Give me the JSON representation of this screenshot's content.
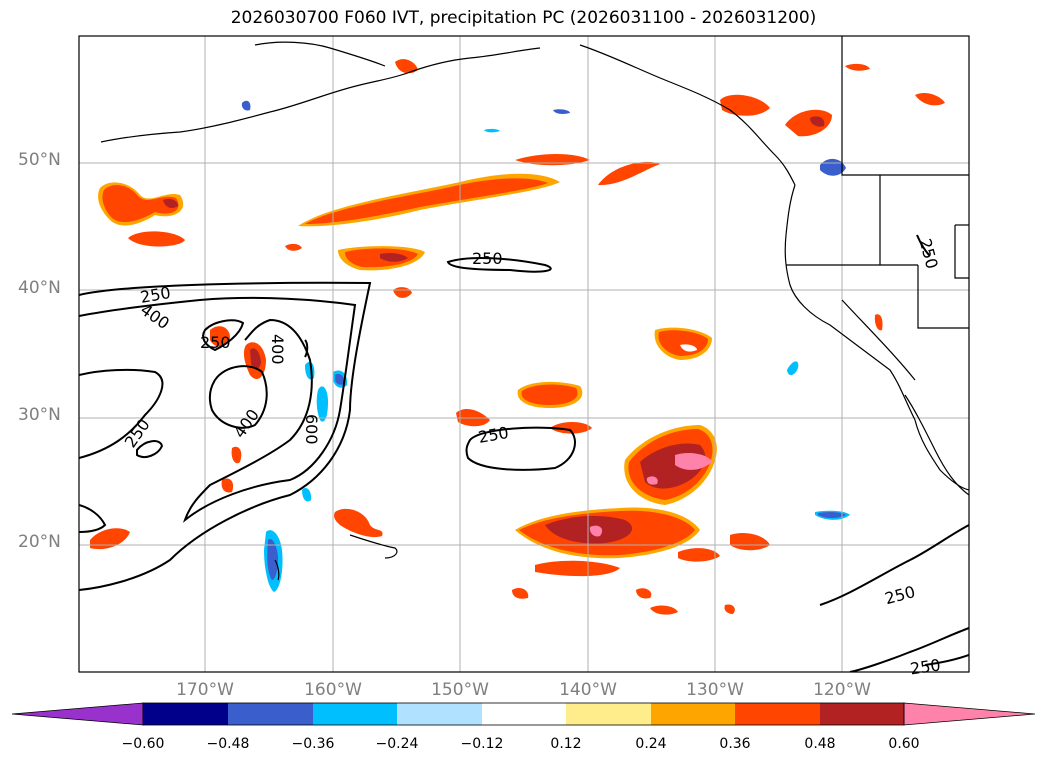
{
  "title": "2026030700 F060 IVT, precipitation PC (2026031100 - 2026031200)",
  "latitude_labels": [
    "20°N",
    "30°N",
    "40°N",
    "50°N"
  ],
  "longitude_labels": [
    "170°W",
    "160°W",
    "150°W",
    "140°W",
    "130°W",
    "120°W"
  ],
  "contour_labels": [
    "250",
    "400",
    "250",
    "250",
    "400",
    "600",
    "400",
    "250",
    "250",
    "250",
    "250",
    "250"
  ],
  "colorbar": {
    "tick_labels": [
      "−0.60",
      "−0.48",
      "−0.36",
      "−0.24",
      "−0.12",
      "0.12",
      "0.24",
      "0.36",
      "0.48",
      "0.60"
    ],
    "colors": [
      "#9932cc",
      "#00008b",
      "#3a5fcd",
      "#00bfff",
      "#b0e2ff",
      "#ffffff",
      "#ffec8b",
      "#ffa500",
      "#ff4500",
      "#b22222",
      "#ff82ab"
    ]
  },
  "colors": {
    "coast": "#000000",
    "grid": "#b0b0b0",
    "contour": "#000000"
  }
}
